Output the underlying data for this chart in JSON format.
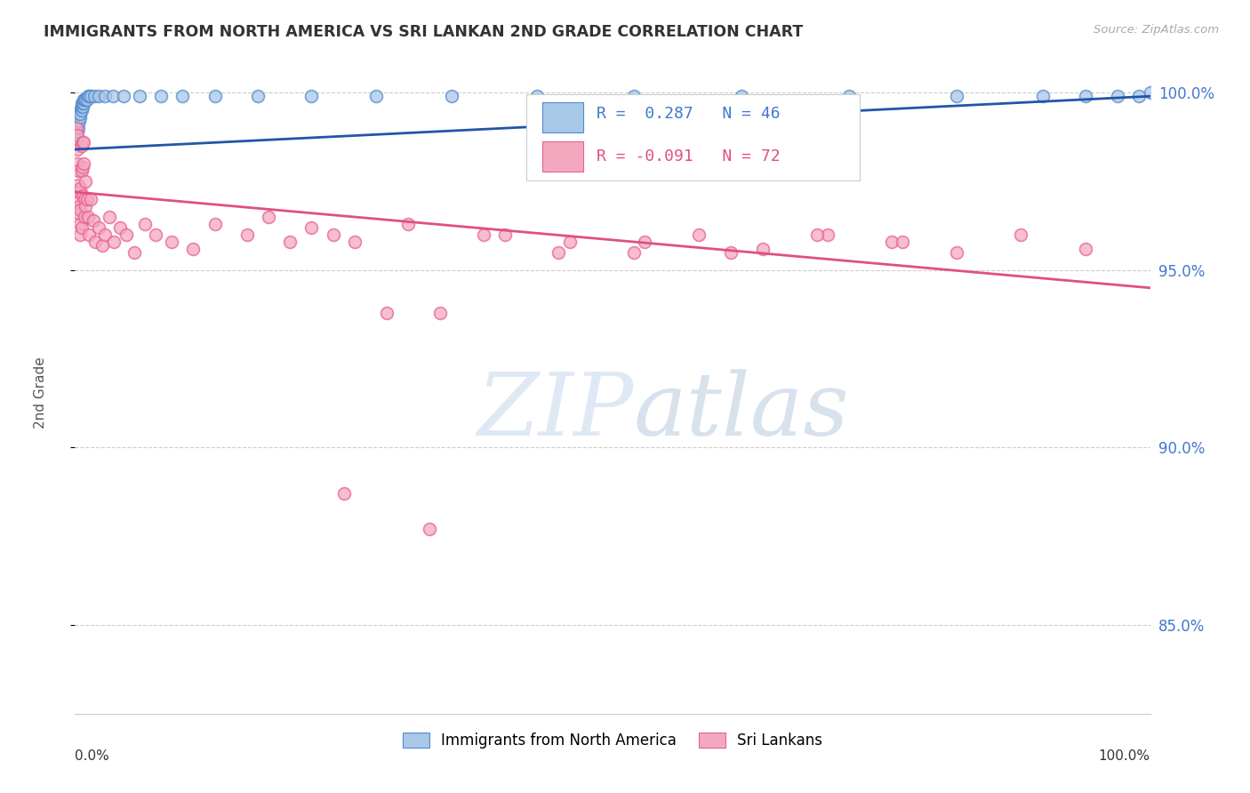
{
  "title": "IMMIGRANTS FROM NORTH AMERICA VS SRI LANKAN 2ND GRADE CORRELATION CHART",
  "source": "Source: ZipAtlas.com",
  "ylabel": "2nd Grade",
  "watermark": "ZIPatlas",
  "legend_blue_label": "Immigrants from North America",
  "legend_pink_label": "Sri Lankans",
  "blue_R": 0.287,
  "blue_N": 46,
  "pink_R": -0.091,
  "pink_N": 72,
  "blue_color": "#a8c8e8",
  "pink_color": "#f4a8c0",
  "blue_edge_color": "#5588cc",
  "pink_edge_color": "#e86090",
  "blue_line_color": "#2255aa",
  "pink_line_color": "#e05080",
  "blue_trend_x": [
    0.0,
    1.0
  ],
  "blue_trend_y": [
    0.984,
    0.999
  ],
  "pink_trend_x": [
    0.0,
    1.0
  ],
  "pink_trend_y": [
    0.972,
    0.945
  ],
  "xlim": [
    0.0,
    1.0
  ],
  "ylim": [
    0.825,
    1.006
  ],
  "yticks": [
    0.85,
    0.9,
    0.95,
    1.0
  ],
  "ytick_labels": [
    "85.0%",
    "90.0%",
    "95.0%",
    "100.0%"
  ],
  "blue_x": [
    0.001,
    0.002,
    0.002,
    0.003,
    0.003,
    0.004,
    0.004,
    0.005,
    0.005,
    0.005,
    0.006,
    0.006,
    0.006,
    0.007,
    0.007,
    0.008,
    0.008,
    0.009,
    0.01,
    0.011,
    0.012,
    0.013,
    0.015,
    0.018,
    0.022,
    0.028,
    0.035,
    0.045,
    0.06,
    0.08,
    0.1,
    0.13,
    0.17,
    0.22,
    0.28,
    0.35,
    0.43,
    0.52,
    0.62,
    0.72,
    0.82,
    0.9,
    0.94,
    0.97,
    0.99,
    1.0
  ],
  "blue_y": [
    0.987,
    0.989,
    0.991,
    0.99,
    0.993,
    0.992,
    0.994,
    0.993,
    0.995,
    0.994,
    0.995,
    0.996,
    0.997,
    0.996,
    0.997,
    0.997,
    0.998,
    0.998,
    0.998,
    0.998,
    0.999,
    0.999,
    0.999,
    0.999,
    0.999,
    0.999,
    0.999,
    0.999,
    0.999,
    0.999,
    0.999,
    0.999,
    0.999,
    0.999,
    0.999,
    0.999,
    0.999,
    0.999,
    0.999,
    0.999,
    0.999,
    0.999,
    0.999,
    0.999,
    0.999,
    1.0
  ],
  "pink_x": [
    0.001,
    0.002,
    0.002,
    0.002,
    0.003,
    0.003,
    0.003,
    0.004,
    0.004,
    0.004,
    0.005,
    0.005,
    0.005,
    0.005,
    0.006,
    0.006,
    0.006,
    0.007,
    0.007,
    0.007,
    0.008,
    0.008,
    0.009,
    0.009,
    0.01,
    0.01,
    0.011,
    0.012,
    0.013,
    0.015,
    0.017,
    0.019,
    0.022,
    0.025,
    0.028,
    0.032,
    0.036,
    0.042,
    0.048,
    0.055,
    0.065,
    0.075,
    0.09,
    0.11,
    0.13,
    0.16,
    0.2,
    0.24,
    0.29,
    0.34,
    0.4,
    0.46,
    0.52,
    0.58,
    0.64,
    0.7,
    0.76,
    0.82,
    0.88,
    0.94,
    0.18,
    0.22,
    0.26,
    0.31,
    0.38,
    0.45,
    0.53,
    0.61,
    0.69,
    0.77,
    0.25,
    0.33
  ],
  "pink_y": [
    0.99,
    0.988,
    0.984,
    0.98,
    0.978,
    0.974,
    0.97,
    0.968,
    0.972,
    0.966,
    0.963,
    0.96,
    0.973,
    0.967,
    0.985,
    0.978,
    0.962,
    0.986,
    0.979,
    0.971,
    0.986,
    0.98,
    0.97,
    0.965,
    0.975,
    0.968,
    0.97,
    0.965,
    0.96,
    0.97,
    0.964,
    0.958,
    0.962,
    0.957,
    0.96,
    0.965,
    0.958,
    0.962,
    0.96,
    0.955,
    0.963,
    0.96,
    0.958,
    0.956,
    0.963,
    0.96,
    0.958,
    0.96,
    0.938,
    0.938,
    0.96,
    0.958,
    0.955,
    0.96,
    0.956,
    0.96,
    0.958,
    0.955,
    0.96,
    0.956,
    0.965,
    0.962,
    0.958,
    0.963,
    0.96,
    0.955,
    0.958,
    0.955,
    0.96,
    0.958,
    0.887,
    0.877
  ]
}
